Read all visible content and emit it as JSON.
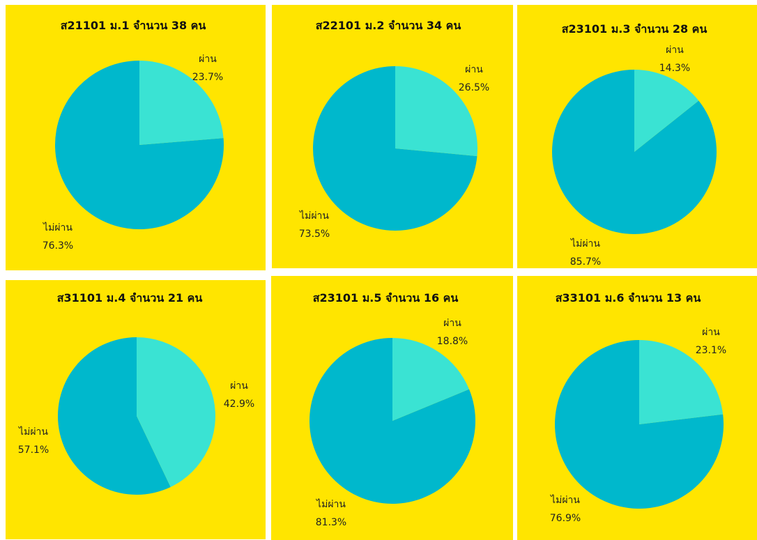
{
  "colors": {
    "background": "#FFE500",
    "pass_slice": "#3AE3D3",
    "fail_slice": "#00B8CC"
  },
  "chart_data": [
    {
      "type": "pie",
      "title": "ส21101 ม.1 จำนวน 38 คน",
      "slices": [
        {
          "label": "ผ่าน",
          "value": 23.7,
          "display": "23.7%"
        },
        {
          "label": "ไม่ผ่าน",
          "value": 76.3,
          "display": "76.3%"
        }
      ]
    },
    {
      "type": "pie",
      "title": "ส22101 ม.2 จำนวน 34 คน",
      "slices": [
        {
          "label": "ผ่าน",
          "value": 26.5,
          "display": "26.5%"
        },
        {
          "label": "ไม่ผ่าน",
          "value": 73.5,
          "display": "73.5%"
        }
      ]
    },
    {
      "type": "pie",
      "title": "ส23101 ม.3 จำนวน  28 คน",
      "slices": [
        {
          "label": "ผ่าน",
          "value": 14.3,
          "display": "14.3%"
        },
        {
          "label": "ไม่ผ่าน",
          "value": 85.7,
          "display": "85.7%"
        }
      ]
    },
    {
      "type": "pie",
      "title": "ส31101 ม.4 จำนวน   21 คน",
      "slices": [
        {
          "label": "ผ่าน",
          "value": 42.9,
          "display": "42.9%"
        },
        {
          "label": "ไม่ผ่าน",
          "value": 57.1,
          "display": "57.1%"
        }
      ]
    },
    {
      "type": "pie",
      "title": "ส23101 ม.5 จำนวน  16 คน",
      "slices": [
        {
          "label": "ผ่าน",
          "value": 18.8,
          "display": "18.8%"
        },
        {
          "label": "ไม่ผ่าน",
          "value": 81.3,
          "display": "81.3%"
        }
      ]
    },
    {
      "type": "pie",
      "title": "ส33101 ม.6 จำนวน  13 คน",
      "slices": [
        {
          "label": "ผ่าน",
          "value": 23.1,
          "display": "23.1%"
        },
        {
          "label": "ไม่ผ่าน",
          "value": 76.9,
          "display": "76.9%"
        }
      ]
    }
  ]
}
